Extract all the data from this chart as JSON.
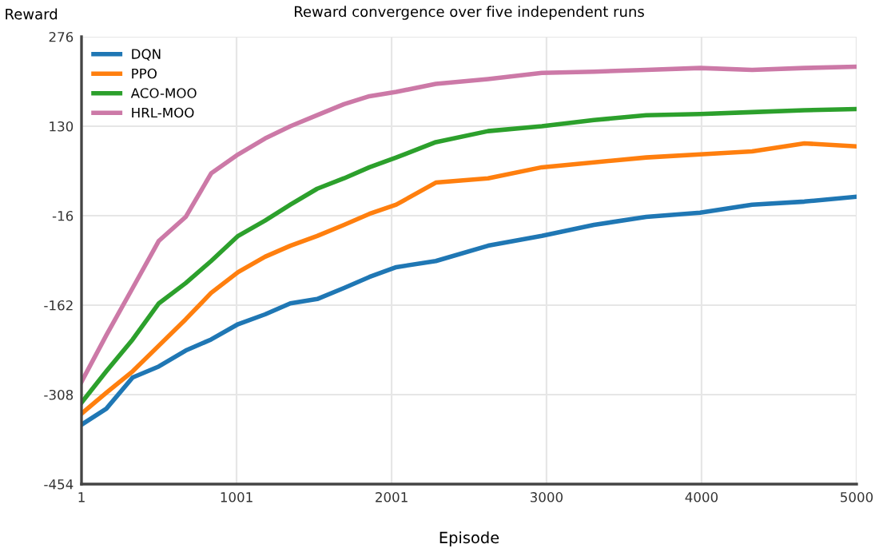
{
  "chart_data": {
    "type": "line",
    "title": "Reward convergence over five independent runs",
    "xlabel": "Episode",
    "ylabel": "Reward",
    "x": [
      1,
      161,
      331,
      500,
      673,
      837,
      1011,
      1185,
      1348,
      1521,
      1694,
      1858,
      2031,
      2286,
      2623,
      2970,
      3306,
      3643,
      3990,
      4326,
      4663,
      5000
    ],
    "series": [
      {
        "name": "DQN",
        "color": "#1f77b4",
        "values": [
          -357,
          -331,
          -280,
          -262,
          -236,
          -218,
          -193,
          -177,
          -159,
          -152,
          -134,
          -116,
          -100,
          -90,
          -65,
          -49,
          -31,
          -18,
          -11,
          2,
          7,
          15
        ]
      },
      {
        "name": "PPO",
        "color": "#ff7f0e",
        "values": [
          -339,
          -305,
          -270,
          -228,
          -185,
          -142,
          -108,
          -83,
          -65,
          -49,
          -31,
          -13,
          2,
          38,
          45,
          63,
          71,
          79,
          84,
          89,
          102,
          97
        ]
      },
      {
        "name": "ACO-MOO",
        "color": "#2ca02c",
        "values": [
          -321,
          -270,
          -218,
          -159,
          -126,
          -90,
          -49,
          -24,
          2,
          28,
          45,
          63,
          79,
          104,
          122,
          130,
          140,
          148,
          150,
          153,
          156,
          158
        ]
      },
      {
        "name": "HRL-MOO",
        "color": "#cc79a7",
        "values": [
          -287,
          -211,
          -134,
          -57,
          -18,
          53,
          84,
          110,
          130,
          148,
          166,
          179,
          186,
          199,
          207,
          217,
          219,
          222,
          225,
          222,
          225,
          227
        ]
      }
    ],
    "xlim": [
      1,
      5000
    ],
    "xticks": [
      1,
      1001,
      2001,
      3000,
      4000,
      5000
    ],
    "ylim": [
      -454,
      276
    ],
    "yticks": [
      -454,
      -308,
      -162,
      -16,
      130,
      276
    ],
    "grid": true,
    "legend": "top left",
    "marker": "none",
    "line_style": "solid"
  }
}
